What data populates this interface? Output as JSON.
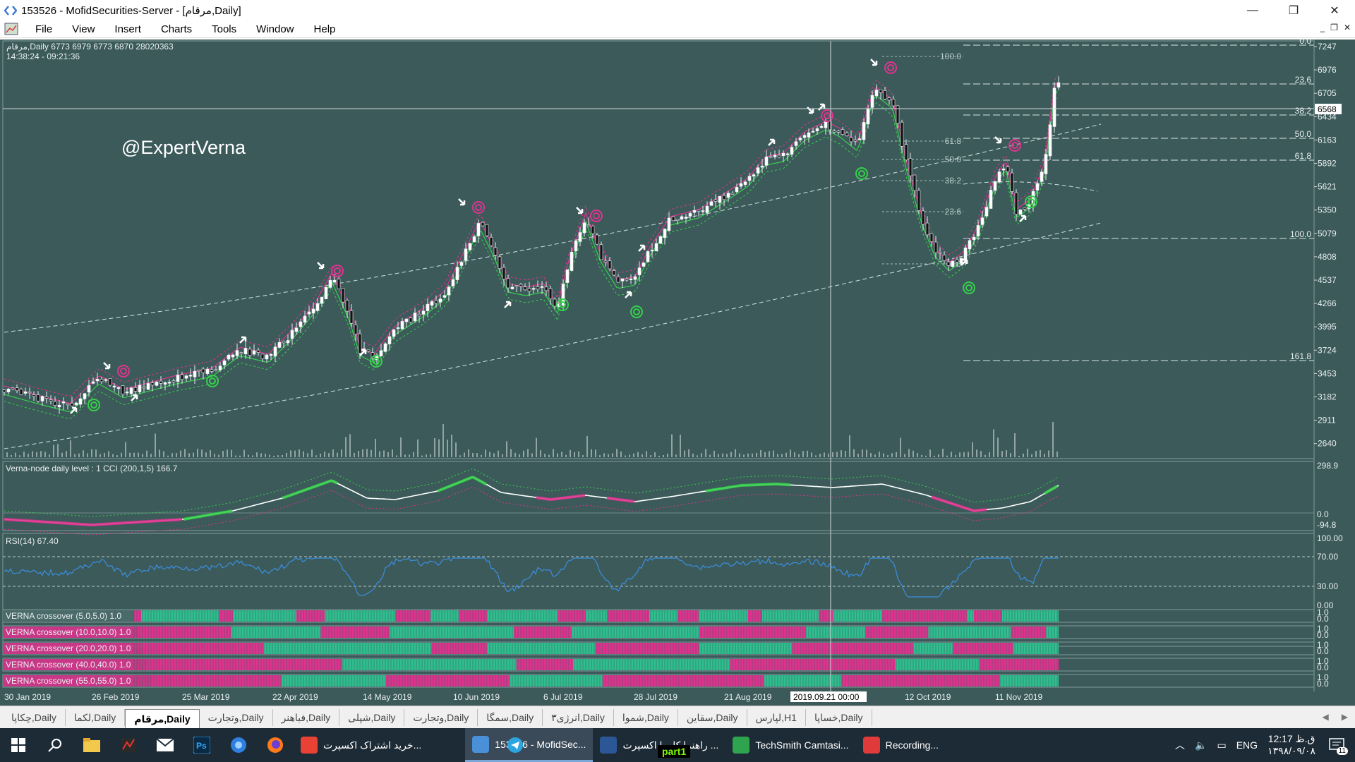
{
  "window": {
    "title": "153526 - MofidSecurities-Server - [مرقام,Daily]",
    "minimize": "—",
    "restore": "❐",
    "close": "✕"
  },
  "menu": {
    "items": [
      "File",
      "View",
      "Insert",
      "Charts",
      "Tools",
      "Window",
      "Help"
    ]
  },
  "chart": {
    "header_line1": "مرقام,Daily  6773 6979 6773 6870  28020363",
    "header_line2": "14:38:24 - 09:21:36",
    "watermark": "@ExpertVerna",
    "price_axis": [
      "7247",
      "6976",
      "6705",
      "6434",
      "6163",
      "5892",
      "5621",
      "5350",
      "5079",
      "4808",
      "4537",
      "4266",
      "3995",
      "3724",
      "3453",
      "3182",
      "2911",
      "2640"
    ],
    "current_price": "6568",
    "fib_right": [
      "0.0",
      "23.6",
      "38.2",
      "50.0",
      "61.8",
      "100.0",
      "161.8"
    ],
    "fib_mid": [
      "100.0",
      "61.8",
      "50.0",
      "38.2",
      "23.6",
      "0.0"
    ],
    "date_axis": [
      "30 Jan 2019",
      "26 Feb 2019",
      "25 Mar 2019",
      "22 Apr 2019",
      "14 May 2019",
      "10 Jun 2019",
      "6 Jul 2019",
      "28 Jul 2019",
      "21 Aug 2019",
      "2019.09.21 00:00",
      "12 Oct 2019",
      "11 Nov 2019"
    ],
    "colors": {
      "bg": "#3c5a5a",
      "bull": "#ffffff",
      "bear": "#111111",
      "magenta": "#e0338f",
      "green": "#35d04a",
      "rsi": "#3b8fe0"
    }
  },
  "indicators": {
    "cci_label": "Verna-node daily level : 1 CCI (200,1,5) 166.7",
    "cci_axis": [
      "298.9",
      "0.0",
      "-94.8"
    ],
    "rsi_label": "RSI(14) 67.40",
    "rsi_axis": [
      "100.00",
      "70.00",
      "30.00",
      "0.00"
    ],
    "crossovers": [
      "VERNA crossover (5.0,5.0) 1.0",
      "VERNA crossover (10.0,10.0) 1.0",
      "VERNA crossover (20.0,20.0) 1.0",
      "VERNA crossover (40.0,40.0) 1.0",
      "VERNA crossover (55.0,55.0) 1.0"
    ],
    "cross_axis": [
      "1.0",
      "0.0"
    ]
  },
  "tabs": [
    {
      "label": "چکاپا,Daily",
      "active": false
    },
    {
      "label": "لکما,Daily",
      "active": false
    },
    {
      "label": "مرقام,Daily",
      "active": true
    },
    {
      "label": "وتجارت,Daily",
      "active": false
    },
    {
      "label": "فباهنر,Daily",
      "active": false
    },
    {
      "label": "شپلی,Daily",
      "active": false
    },
    {
      "label": "وتجارت,Daily",
      "active": false
    },
    {
      "label": "سمگا,Daily",
      "active": false
    },
    {
      "label": "انرژی۳,Daily",
      "active": false
    },
    {
      "label": "شموا,Daily",
      "active": false
    },
    {
      "label": "سقاین,Daily",
      "active": false
    },
    {
      "label": "لپارس,H1",
      "active": false
    },
    {
      "label": "خساپا,Daily",
      "active": false
    }
  ],
  "taskbar": {
    "apps": [
      {
        "label": "خرید اشتراک اکسپرت...",
        "color": "#e94235",
        "active": false
      },
      {
        "label": "153526 - MofidSec...",
        "color": "#4a90d9",
        "active": true
      },
      {
        "label": "راهنما کار با اکسپرت ...",
        "color": "#2b5797",
        "active": false
      },
      {
        "label": "TechSmith Camtasi...",
        "color": "#2ea44f",
        "active": false
      },
      {
        "label": "Recording...",
        "color": "#e03a3a",
        "active": false
      }
    ],
    "overlay": "part1",
    "lang": "ENG",
    "time": "12:17 ق.ظ",
    "date": "۱۳۹۸/۰۹/۰۸",
    "notif": "11"
  }
}
